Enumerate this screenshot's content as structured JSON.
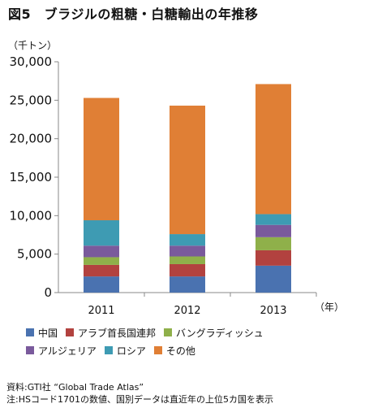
{
  "title": "図5　ブラジルの粗糖・白糖輸出の年推移",
  "unit_label": "（千トン）",
  "x_unit_label": "（年）",
  "source_lines": [
    "資料:GTI社 “Global Trade Atlas”",
    "注:HSコード1701の数値、国別データは直近年の上位5カ国を表示"
  ],
  "chart_data": {
    "type": "bar",
    "stacked": true,
    "categories": [
      "2011",
      "2012",
      "2013"
    ],
    "ylim": [
      0,
      30000
    ],
    "yticks": [
      "0",
      "5,000",
      "10,000",
      "15,000",
      "20,000",
      "25,000",
      "30,000"
    ],
    "ytick_values": [
      0,
      5000,
      10000,
      15000,
      20000,
      25000,
      30000
    ],
    "grid": false,
    "legend_position": "bottom",
    "series": [
      {
        "name": "中国",
        "color": "#4a72b0",
        "values": [
          2100,
          2100,
          3500
        ]
      },
      {
        "name": "アラブ首長国連邦",
        "color": "#b2423f",
        "values": [
          1500,
          1600,
          2000
        ]
      },
      {
        "name": "バングラディッシュ",
        "color": "#8fb04a",
        "values": [
          1000,
          1000,
          1700
        ]
      },
      {
        "name": "アルジェリア",
        "color": "#7a5a9c",
        "values": [
          1500,
          1400,
          1600
        ]
      },
      {
        "name": "ロシア",
        "color": "#3e9bb3",
        "values": [
          3300,
          1500,
          1400
        ]
      },
      {
        "name": "その他",
        "color": "#e07f35",
        "values": [
          15900,
          16700,
          16900
        ]
      }
    ]
  }
}
